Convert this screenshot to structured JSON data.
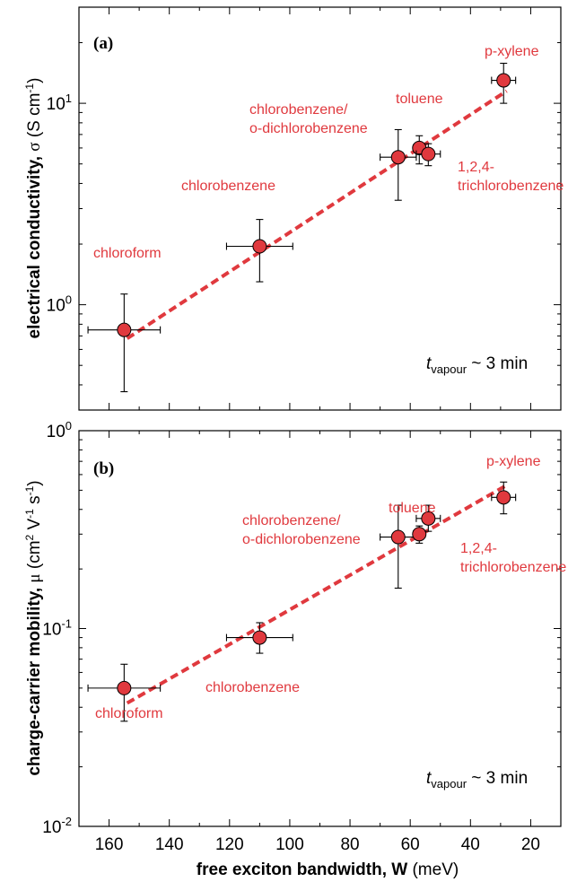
{
  "chart_data": [
    {
      "type": "scatter",
      "panel_label": "(a)",
      "ylabel": "electrical conductivity, σ (S cm⁻¹)",
      "xlabel": "free exciton bandwidth, W (meV)",
      "xlim": [
        170,
        10
      ],
      "x_reversed": true,
      "ylim": [
        0.3,
        30
      ],
      "yscale": "log",
      "ytick_labels": [
        "10⁰",
        "10¹"
      ],
      "xtick_labels": [
        "160",
        "140",
        "120",
        "100",
        "80",
        "60",
        "40",
        "20"
      ],
      "annotation": {
        "t": "t",
        "sub": "vapour",
        "rest": " ~ 3 min"
      },
      "points": [
        {
          "label": "chloroform",
          "x": 155,
          "y": 0.75,
          "xerr": 12,
          "yerr_low": 0.37,
          "yerr_high": 1.13
        },
        {
          "label": "chlorobenzene",
          "x": 110,
          "y": 1.95,
          "xerr": 11,
          "yerr_low": 1.3,
          "yerr_high": 2.65
        },
        {
          "label": "chlorobenzene/ o-dichlorobenzene",
          "x": 64,
          "y": 5.4,
          "xerr": 6,
          "yerr_low": 3.3,
          "yerr_high": 7.4
        },
        {
          "label": "toluene",
          "x": 57,
          "y": 6.0,
          "xerr": 2,
          "yerr_low": 5.0,
          "yerr_high": 6.9
        },
        {
          "label": "1,2,4-trichlorobenzene",
          "x": 54,
          "y": 5.6,
          "xerr": 4,
          "yerr_low": 4.9,
          "yerr_high": 6.3
        },
        {
          "label": "p-xylene",
          "x": 29,
          "y": 13.0,
          "xerr": 4,
          "yerr_low": 10.0,
          "yerr_high": 15.8
        }
      ],
      "fit_line": {
        "x": [
          154,
          28
        ],
        "y": [
          0.68,
          11.5
        ]
      }
    },
    {
      "type": "scatter",
      "panel_label": "(b)",
      "ylabel": "charge-carrier mobility, μ (cm² V⁻¹ s⁻¹)",
      "xlabel": "free exciton bandwidth, W (meV)",
      "xlim": [
        170,
        10
      ],
      "x_reversed": true,
      "ylim": [
        0.01,
        1
      ],
      "yscale": "log",
      "ytick_labels": [
        "10⁻²",
        "10⁻¹",
        "10⁰"
      ],
      "xtick_labels": [
        "160",
        "140",
        "120",
        "100",
        "80",
        "60",
        "40",
        "20"
      ],
      "annotation": {
        "t": "t",
        "sub": "vapour",
        "rest": " ~ 3 min"
      },
      "points": [
        {
          "label": "chloroform",
          "x": 155,
          "y": 0.05,
          "xerr": 12,
          "yerr_low": 0.034,
          "yerr_high": 0.066
        },
        {
          "label": "chlorobenzene",
          "x": 110,
          "y": 0.09,
          "xerr": 11,
          "yerr_low": 0.075,
          "yerr_high": 0.107
        },
        {
          "label": "chlorobenzene/ o-dichlorobenzene",
          "x": 64,
          "y": 0.29,
          "xerr": 6,
          "yerr_low": 0.16,
          "yerr_high": 0.42
        },
        {
          "label": "1,2,4-trichlorobenzene",
          "x": 57,
          "y": 0.3,
          "xerr": 2,
          "yerr_low": 0.27,
          "yerr_high": 0.33
        },
        {
          "label": "toluene",
          "x": 54,
          "y": 0.36,
          "xerr": 4,
          "yerr_low": 0.31,
          "yerr_high": 0.42
        },
        {
          "label": "p-xylene",
          "x": 29,
          "y": 0.46,
          "xerr": 4,
          "yerr_low": 0.38,
          "yerr_high": 0.55
        }
      ],
      "fit_line": {
        "x": [
          154,
          28
        ],
        "y": [
          0.042,
          0.53
        ]
      }
    }
  ],
  "annotations": {
    "a": {
      "chloroform": "chloroform",
      "chlorobenzene": "chlorobenzene",
      "cb_odcb_1": "chlorobenzene/",
      "cb_odcb_2": "o-dichlorobenzene",
      "toluene": "toluene",
      "tcb_1": "1,2,4-",
      "tcb_2": "trichlorobenzene",
      "pxylene": "p-xylene"
    },
    "b": {
      "chloroform": "chloroform",
      "chlorobenzene": "chlorobenzene",
      "cb_odcb_1": "chlorobenzene/",
      "cb_odcb_2": "o-dichlorobenzene",
      "toluene": "toluene",
      "tcb_1": "1,2,4-",
      "tcb_2": "trichlorobenzene",
      "pxylene": "p-xylene"
    }
  },
  "colors": {
    "marker": "#e0393e",
    "fit": "#e0393e",
    "annotation": "#e0393e"
  }
}
